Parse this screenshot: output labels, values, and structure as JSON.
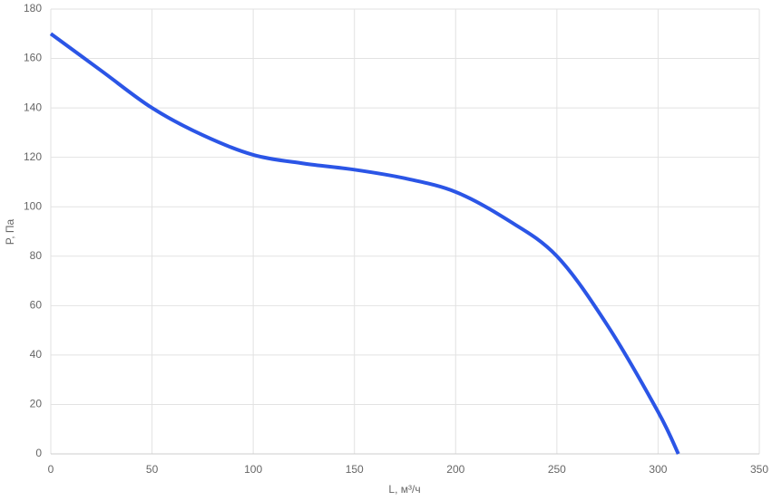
{
  "chart_data": {
    "type": "line",
    "x_label": "L, м³/ч",
    "y_label": "P, Па",
    "series": [
      {
        "name": "P",
        "color": "#2b55e6",
        "x": [
          0,
          25,
          50,
          75,
          100,
          125,
          150,
          175,
          200,
          225,
          250,
          275,
          300,
          310
        ],
        "values": [
          170,
          155,
          140,
          129,
          121,
          117.5,
          115,
          111.5,
          106,
          95,
          80,
          52,
          17,
          0
        ]
      }
    ],
    "xlim": [
      0,
      350
    ],
    "xticks": [
      0,
      50,
      100,
      150,
      200,
      250,
      300,
      350
    ],
    "ylim": [
      0,
      180
    ],
    "yticks": [
      0,
      20,
      40,
      60,
      80,
      100,
      120,
      140,
      160,
      180
    ],
    "grid": true
  }
}
